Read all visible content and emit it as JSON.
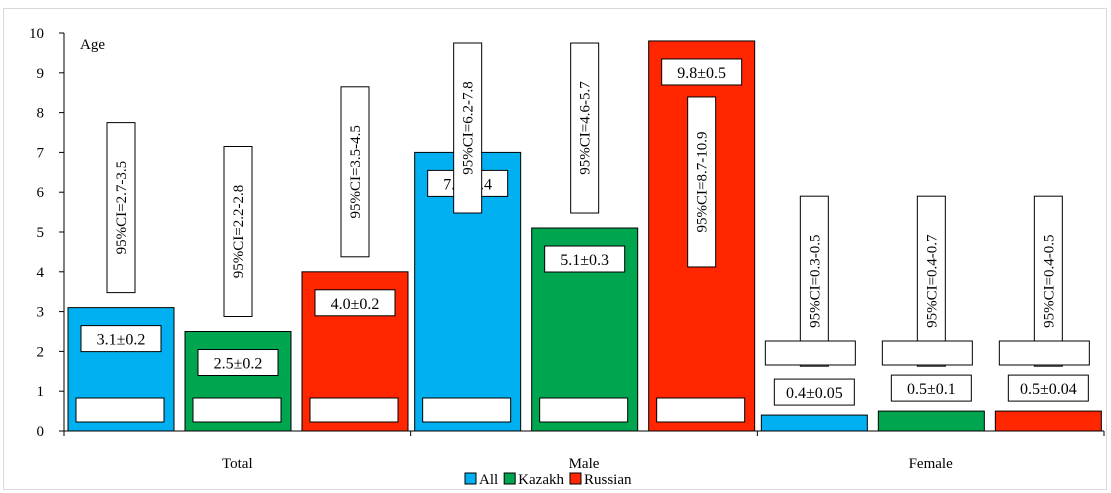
{
  "chart_data": {
    "type": "bar",
    "title": "",
    "ylabel": "Age",
    "xlabel": "",
    "ylim": [
      0,
      10
    ],
    "yticks": [
      0,
      1,
      2,
      3,
      4,
      5,
      6,
      7,
      8,
      9,
      10
    ],
    "grid": false,
    "legend_position": "bottom",
    "categories": [
      "Total",
      "Male",
      "Female"
    ],
    "series": [
      {
        "name": "All",
        "color": "#00b0f0",
        "values": [
          3.1,
          7.0,
          0.4
        ],
        "labels": [
          "3.1±0.2",
          "7.0±0.4",
          "0.4±0.05"
        ],
        "ci_labels": [
          "95%CI=2.7-3.5",
          "95%CI=6.2-7.8",
          "95%CI=0.3-0.5"
        ]
      },
      {
        "name": "Kazakh",
        "color": "#00a550",
        "values": [
          2.5,
          5.1,
          0.5
        ],
        "labels": [
          "2.5±0.2",
          "5.1±0.3",
          "0.5±0.1"
        ],
        "ci_labels": [
          "95%CI=2.2-2.8",
          "95%CI=4.6-5.7",
          "95%CI=0.4-0.7"
        ]
      },
      {
        "name": "Russian",
        "color": "#ff2600",
        "values": [
          4.0,
          9.8,
          0.5
        ],
        "labels": [
          "4.0±0.2",
          "9.8±0.5",
          "0.5±0.04"
        ],
        "ci_labels": [
          "95%CI=3.5-4.5",
          "95%CI=8.7-10.9",
          "95%CI=0.4-0.5"
        ]
      }
    ]
  }
}
